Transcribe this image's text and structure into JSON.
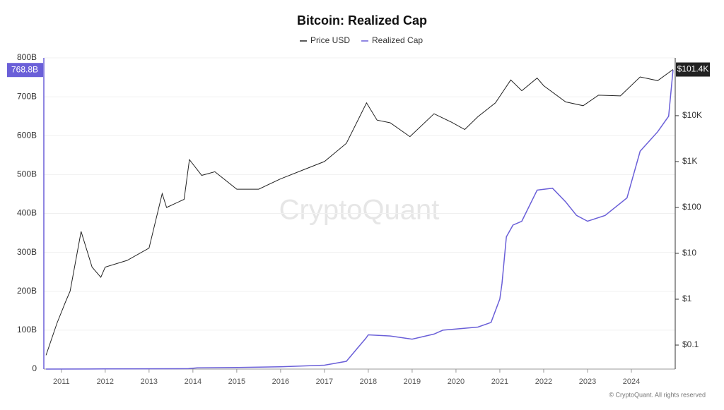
{
  "chart_data": {
    "type": "line",
    "title": "Bitcoin: Realized Cap",
    "watermark": "CryptoQuant",
    "footer": "© CryptoQuant. All rights reserved",
    "xlim": [
      2010.6,
      2025.0
    ],
    "xticks": [
      2011,
      2012,
      2013,
      2014,
      2015,
      2016,
      2017,
      2018,
      2019,
      2020,
      2021,
      2022,
      2023,
      2024
    ],
    "ylim": [
      0,
      800
    ],
    "yticks": [
      0,
      {
        "value": 100,
        "label": "100B"
      },
      {
        "value": 200,
        "label": "200B"
      },
      {
        "value": 300,
        "label": "300B"
      },
      {
        "value": 400,
        "label": "400B"
      },
      {
        "value": 500,
        "label": "500B"
      },
      {
        "value": 600,
        "label": "600B"
      },
      {
        "value": 700,
        "label": "700B"
      },
      {
        "value": 800,
        "label": "800B"
      }
    ],
    "y2lim": [
      0.03,
      182000
    ],
    "y2scale": "log",
    "y2ticks": [
      {
        "value": 0.1,
        "label": "$0.1"
      },
      {
        "value": 1,
        "label": "$1"
      },
      {
        "value": 10,
        "label": "$10"
      },
      {
        "value": 100,
        "label": "$100"
      },
      {
        "value": 1000,
        "label": "$1K"
      },
      {
        "value": 10000,
        "label": "$10K"
      }
    ],
    "grid": true,
    "legend": "top",
    "series": [
      {
        "name": "Price USD",
        "color": "#222222",
        "axis": "y2",
        "x": [
          2010.65,
          2010.9,
          2011.1,
          2011.2,
          2011.45,
          2011.7,
          2011.9,
          2012.0,
          2012.5,
          2013.0,
          2013.3,
          2013.4,
          2013.8,
          2013.92,
          2014.2,
          2014.5,
          2015.0,
          2015.5,
          2016.0,
          2016.5,
          2017.0,
          2017.5,
          2017.96,
          2018.2,
          2018.5,
          2018.95,
          2019.5,
          2019.9,
          2020.2,
          2020.5,
          2020.9,
          2021.25,
          2021.5,
          2021.85,
          2022.0,
          2022.5,
          2022.9,
          2023.25,
          2023.75,
          2024.2,
          2024.6,
          2024.95
        ],
        "values": [
          0.06,
          0.3,
          0.9,
          1.5,
          30,
          5,
          3,
          5,
          7,
          13,
          200,
          100,
          150,
          1100,
          500,
          600,
          250,
          250,
          420,
          650,
          1000,
          2500,
          19000,
          8000,
          7000,
          3500,
          11000,
          7200,
          5000,
          9500,
          19000,
          60000,
          35000,
          66000,
          45000,
          20000,
          16500,
          28000,
          27000,
          70000,
          58000,
          101400
        ]
      },
      {
        "name": "Realized Cap",
        "color": "#6a5fd8",
        "axis": "y",
        "x": [
          2010.65,
          2012.0,
          2013.9,
          2014.1,
          2015.0,
          2016.0,
          2017.0,
          2017.5,
          2017.8,
          2017.95,
          2018.0,
          2018.5,
          2019.0,
          2019.5,
          2019.7,
          2020.0,
          2020.5,
          2020.8,
          2021.0,
          2021.05,
          2021.15,
          2021.3,
          2021.5,
          2021.85,
          2022.2,
          2022.5,
          2022.75,
          2023.0,
          2023.4,
          2023.9,
          2024.2,
          2024.6,
          2024.85,
          2024.95
        ],
        "values": [
          0,
          0.3,
          1,
          3,
          4,
          6,
          10,
          20,
          60,
          80,
          88,
          85,
          77,
          90,
          100,
          103,
          108,
          120,
          180,
          220,
          340,
          370,
          380,
          460,
          465,
          430,
          395,
          380,
          395,
          440,
          560,
          610,
          650,
          768.8
        ]
      }
    ],
    "annotations": [
      {
        "text": "768.8B",
        "value": 768.8,
        "axis": "y"
      },
      {
        "text": "$101.4K",
        "value": 101400,
        "axis": "y2"
      }
    ]
  }
}
